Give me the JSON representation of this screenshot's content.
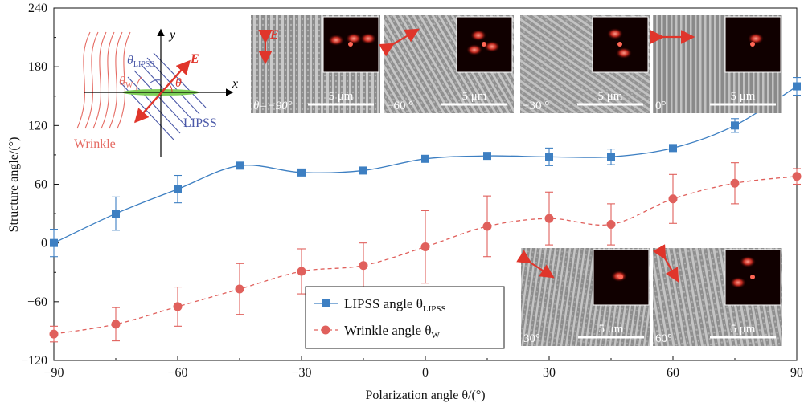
{
  "chart_data": {
    "type": "scatter",
    "xlabel": "Polarization angle θ/(°)",
    "ylabel": "Structure angle/(°)",
    "xlim": [
      -90,
      90
    ],
    "ylim": [
      -120,
      240
    ],
    "xticks": [
      -90,
      -60,
      -30,
      0,
      30,
      60,
      90
    ],
    "yticks": [
      -120,
      -60,
      0,
      60,
      120,
      180,
      240
    ],
    "legend_position": "bottom-center",
    "series": [
      {
        "name": "LIPSS angle θLIPSS",
        "color": "#3d7fc2",
        "marker": "square",
        "line": "solid",
        "x": [
          -90,
          -75,
          -60,
          -45,
          -30,
          -15,
          0,
          15,
          30,
          45,
          60,
          75,
          90
        ],
        "y": [
          0,
          30,
          55,
          79,
          72,
          74,
          86,
          89,
          88,
          88,
          97,
          120,
          160
        ],
        "err": [
          14,
          17,
          14,
          3,
          3,
          3,
          3,
          3,
          9,
          8,
          3,
          7,
          9
        ]
      },
      {
        "name": "Wrinkle angle θW",
        "color": "#e0605c",
        "marker": "circle",
        "line": "dashed",
        "x": [
          -90,
          -75,
          -60,
          -45,
          -30,
          -15,
          0,
          15,
          30,
          45,
          60,
          75,
          90
        ],
        "y": [
          -93,
          -83,
          -65,
          -47,
          -29,
          -23,
          -4,
          17,
          25,
          19,
          45,
          61,
          68
        ],
        "err": [
          8,
          17,
          20,
          26,
          23,
          23,
          37,
          31,
          27,
          21,
          25,
          21,
          8
        ]
      }
    ]
  },
  "legend": {
    "lipss_label": "LIPSS angle θ",
    "lipss_sub": "LIPSS",
    "wrinkle_label": "Wrinkle angle θ",
    "wrinkle_sub": "W"
  },
  "schematic": {
    "y_axis": "y",
    "x_axis": "x",
    "field": "E",
    "theta": "θ",
    "theta_lipss": "θ",
    "theta_lipss_sub": "LIPSS",
    "theta_w": "θ",
    "theta_w_sub": "W",
    "lipss": "LIPSS",
    "wrinkle": "Wrinkle"
  },
  "insets": [
    {
      "label": "θ=−90°",
      "scalebar": "5 μm"
    },
    {
      "label": "−60 °",
      "scalebar": "5 μm"
    },
    {
      "label": "−30 °",
      "scalebar": "5 μm"
    },
    {
      "label": "0°",
      "scalebar": "5 μm"
    },
    {
      "label": "30°",
      "scalebar": "5 μm"
    },
    {
      "label": "60°",
      "scalebar": "5 μm"
    }
  ]
}
